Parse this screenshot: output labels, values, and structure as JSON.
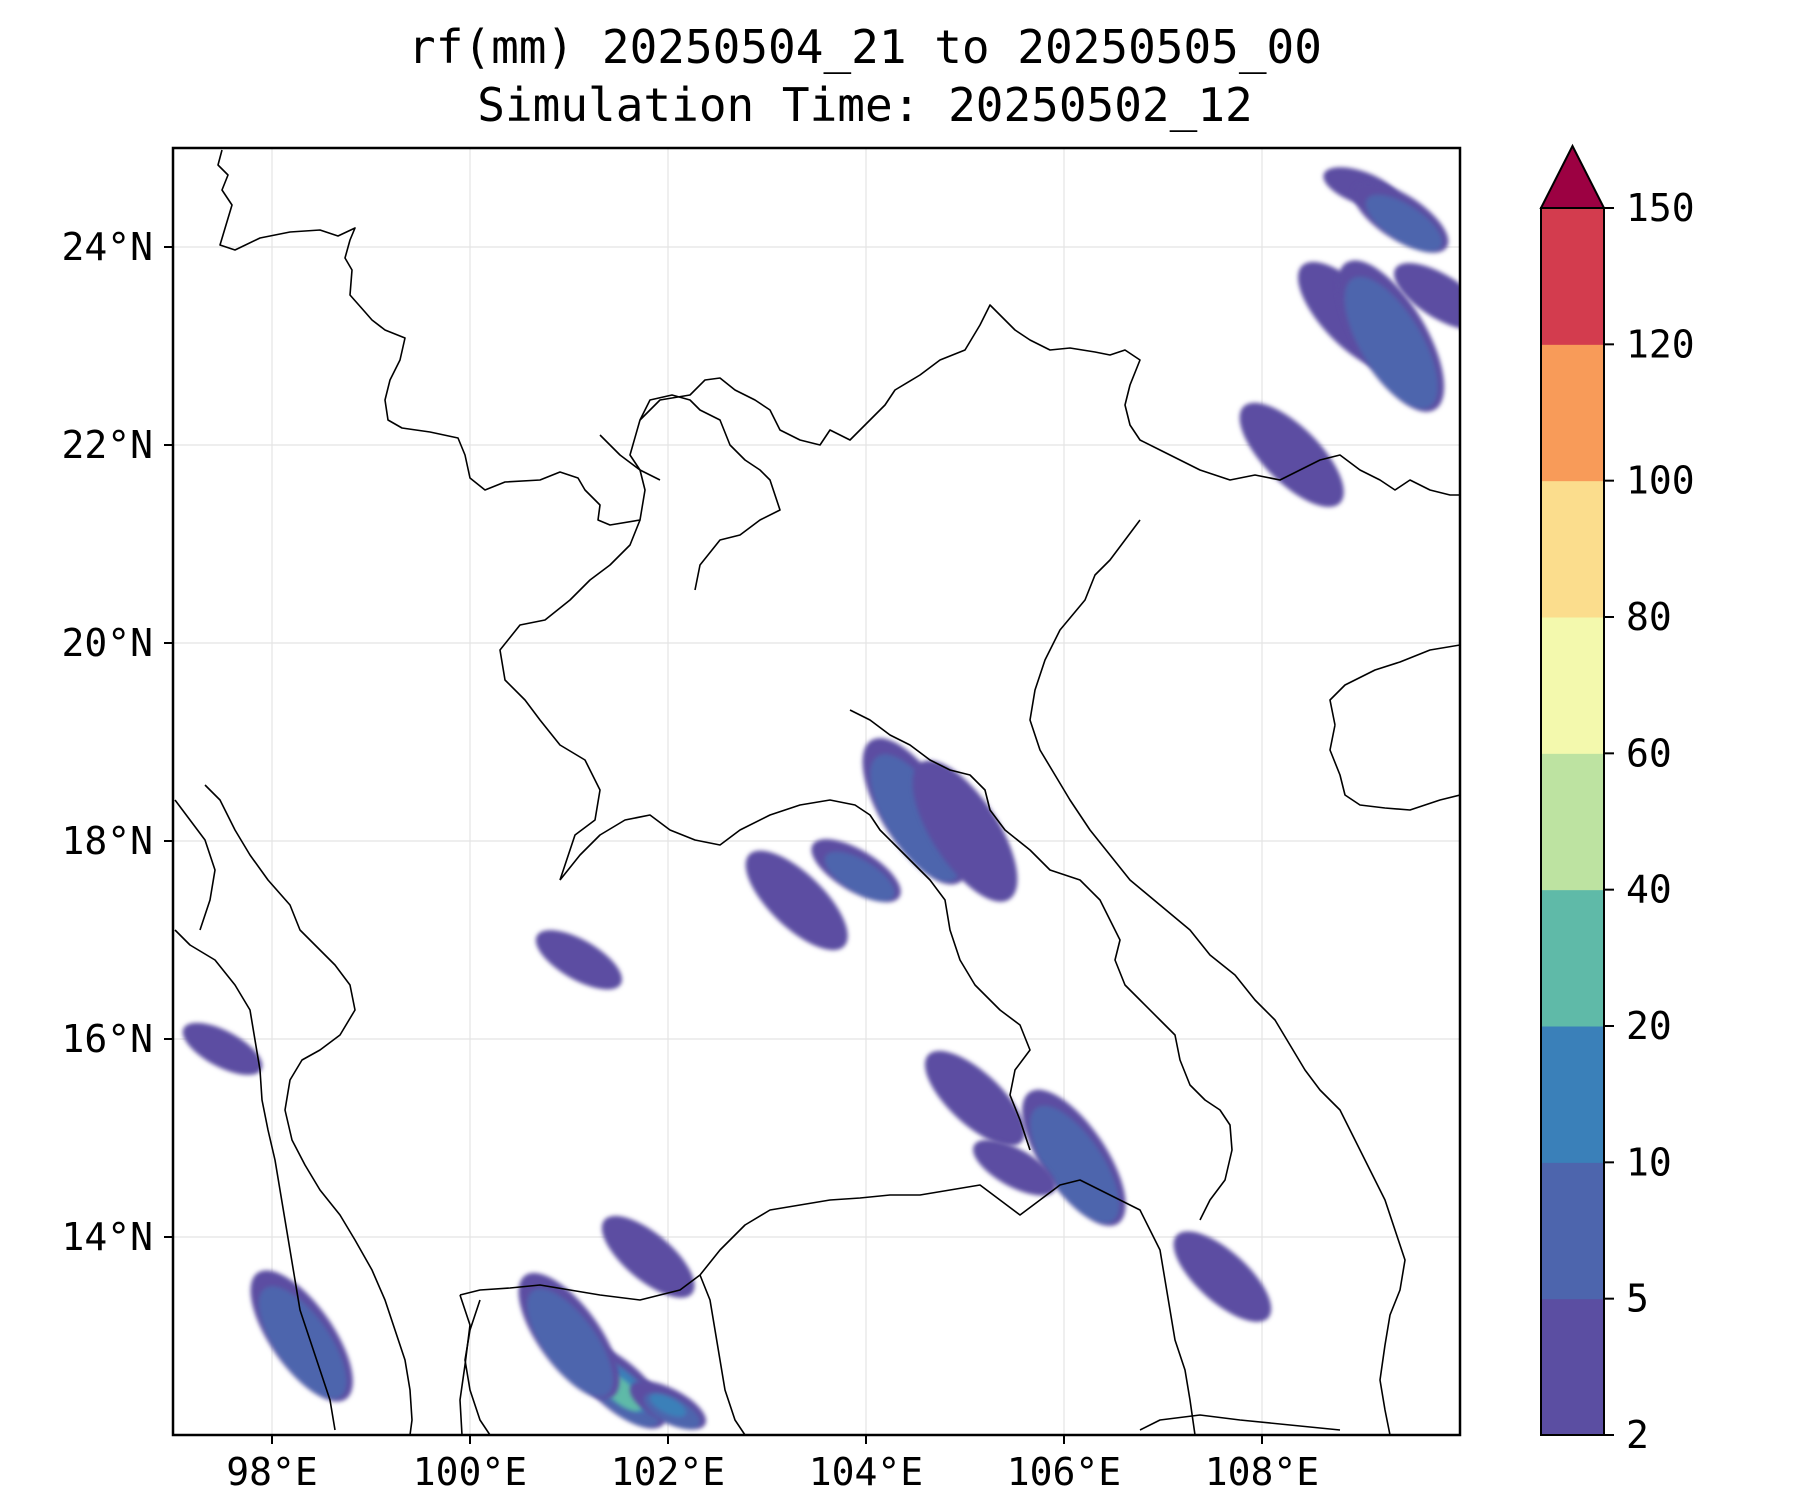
{
  "title_line1": "rf(mm) 20250504_21 to 20250505_00",
  "title_line2": "Simulation Time: 20250502_12",
  "map": {
    "lon_range": [
      97.0,
      110.0
    ],
    "lat_range": [
      12.0,
      25.0
    ],
    "x_ticks": [
      98,
      100,
      102,
      104,
      106,
      108
    ],
    "x_tick_labels": [
      "98°E",
      "100°E",
      "102°E",
      "104°E",
      "106°E",
      "108°E"
    ],
    "y_ticks": [
      14,
      16,
      18,
      20,
      22,
      24
    ],
    "y_tick_labels": [
      "14°N",
      "16°N",
      "18°N",
      "20°N",
      "22°N",
      "24°N"
    ],
    "gridlines": true
  },
  "colorbar": {
    "levels": [
      2,
      5,
      10,
      20,
      40,
      60,
      80,
      100,
      120,
      150
    ],
    "labels": [
      "2",
      "5",
      "10",
      "20",
      "40",
      "60",
      "80",
      "100",
      "120",
      "150"
    ],
    "colors": [
      "#5b4ea2",
      "#4d65ad",
      "#3a80b9",
      "#5fbaa8",
      "#bde3a1",
      "#f3f9ad",
      "#fbdd8d",
      "#f89b59",
      "#d33c4e"
    ],
    "extend_color": "#9c0142",
    "extend": "max"
  },
  "rain_cells": [
    {
      "lon": 109.0,
      "lat": 24.6,
      "level": 0
    },
    {
      "lon": 109.4,
      "lat": 24.3,
      "level": 1
    },
    {
      "lon": 108.9,
      "lat": 23.3,
      "level": 0
    },
    {
      "lon": 109.3,
      "lat": 23.1,
      "level": 1
    },
    {
      "lon": 109.8,
      "lat": 23.5,
      "level": 0
    },
    {
      "lon": 108.3,
      "lat": 21.9,
      "level": 0
    },
    {
      "lon": 104.5,
      "lat": 18.3,
      "level": 1
    },
    {
      "lon": 103.9,
      "lat": 17.7,
      "level": 1
    },
    {
      "lon": 103.3,
      "lat": 17.4,
      "level": 0
    },
    {
      "lon": 105.0,
      "lat": 18.1,
      "level": 0
    },
    {
      "lon": 101.1,
      "lat": 16.8,
      "level": 0
    },
    {
      "lon": 105.1,
      "lat": 15.4,
      "level": 0
    },
    {
      "lon": 106.1,
      "lat": 14.8,
      "level": 1
    },
    {
      "lon": 105.5,
      "lat": 14.7,
      "level": 0
    },
    {
      "lon": 107.6,
      "lat": 13.6,
      "level": 0
    },
    {
      "lon": 98.3,
      "lat": 13.0,
      "level": 1
    },
    {
      "lon": 97.5,
      "lat": 15.9,
      "level": 0
    },
    {
      "lon": 101.5,
      "lat": 12.5,
      "level": 3
    },
    {
      "lon": 101.0,
      "lat": 13.0,
      "level": 1
    },
    {
      "lon": 102.0,
      "lat": 12.3,
      "level": 2
    },
    {
      "lon": 101.8,
      "lat": 13.8,
      "level": 0
    }
  ]
}
